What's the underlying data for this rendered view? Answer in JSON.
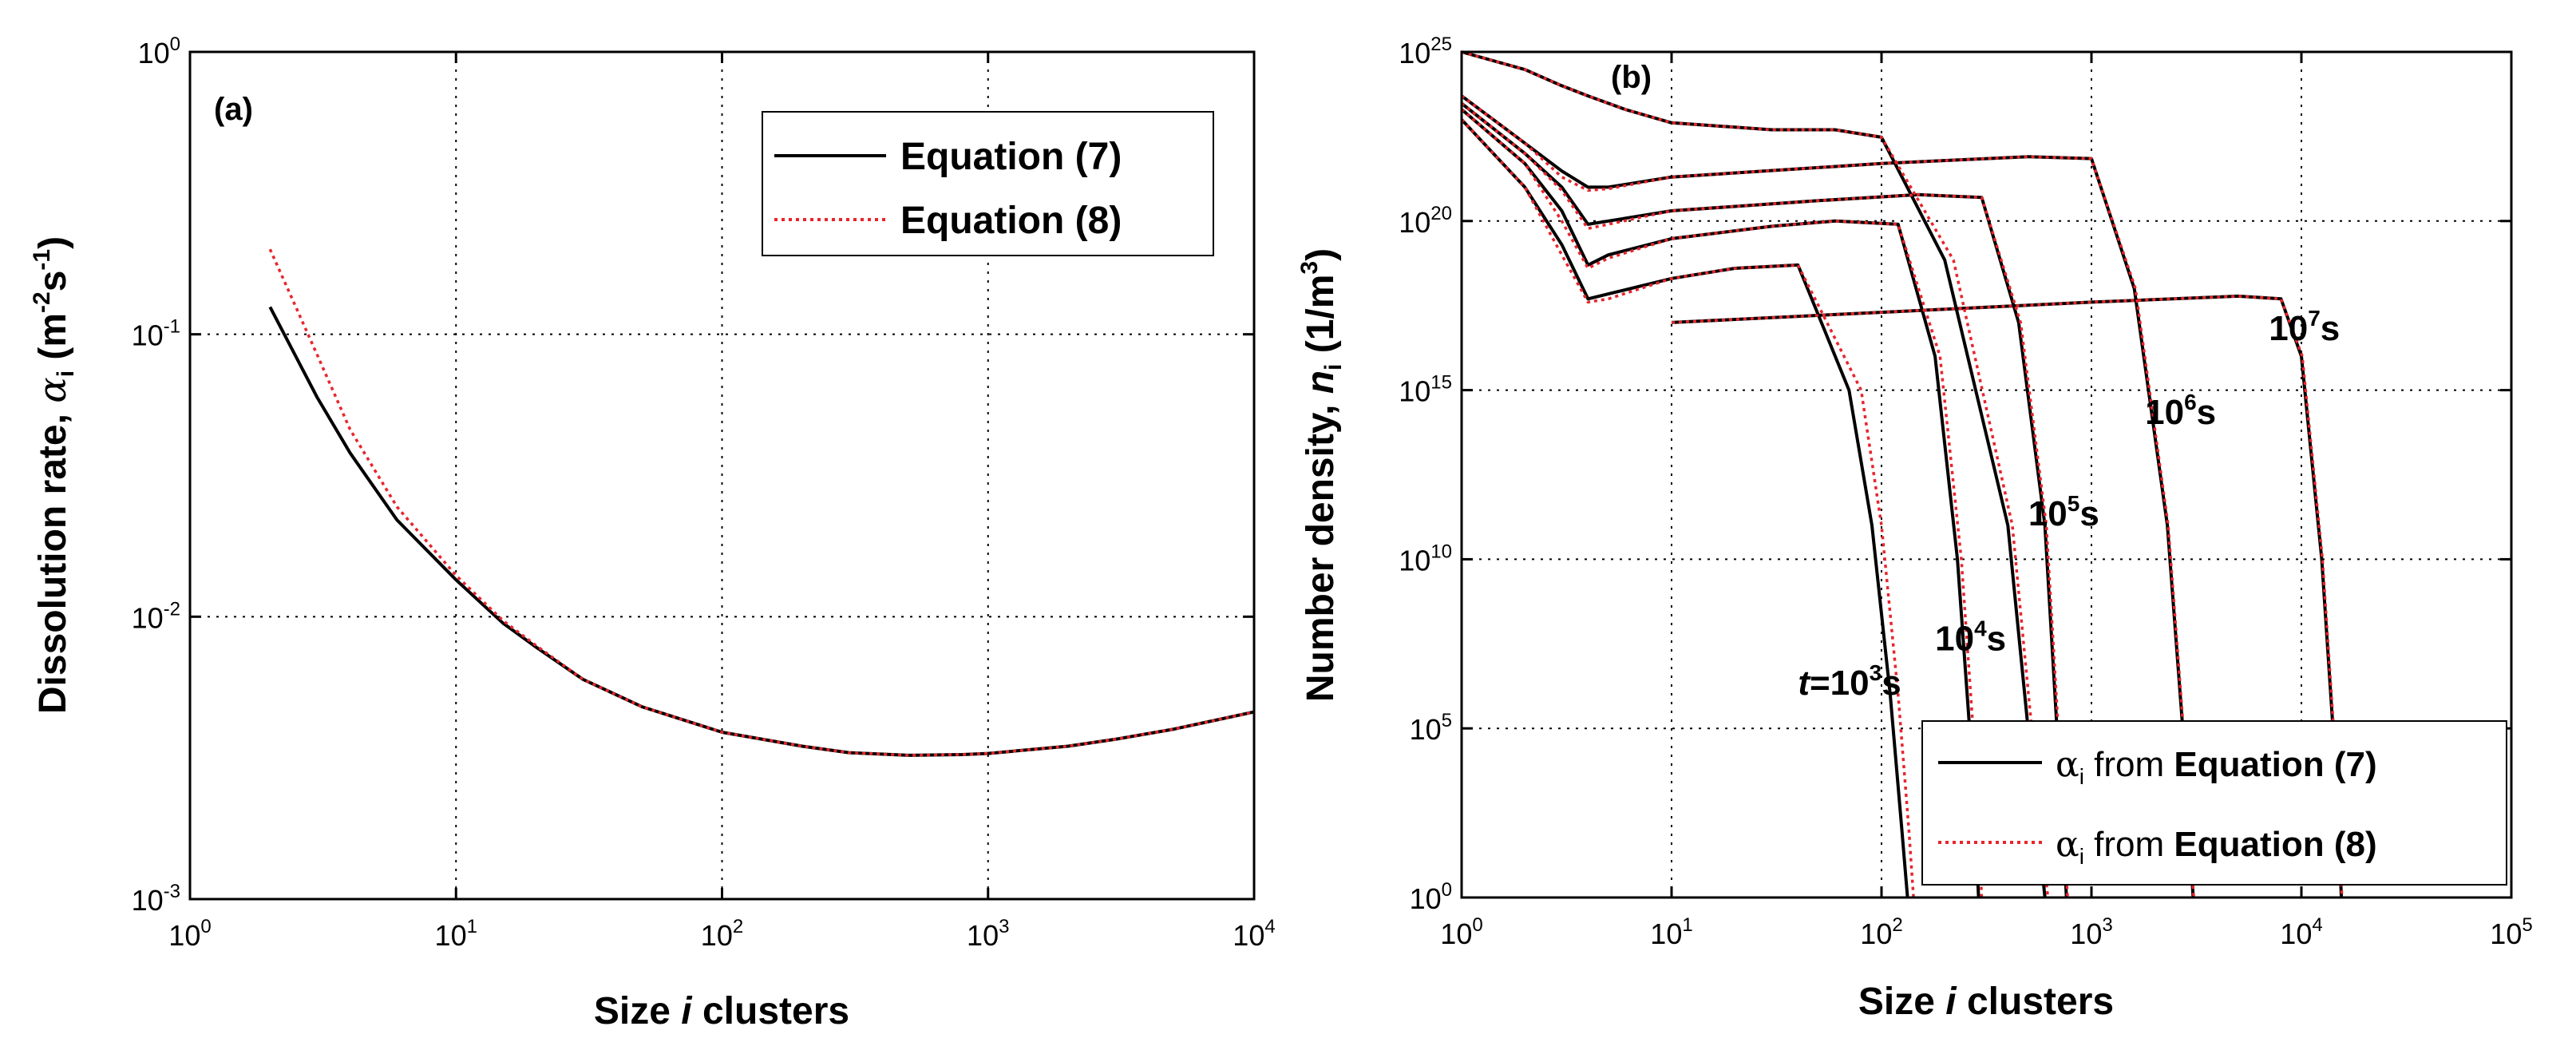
{
  "chart_data": [
    {
      "type": "line",
      "panel_label": "(a)",
      "title": "",
      "xlabel": {
        "pre": "Size ",
        "ital": "i",
        "post": " clusters"
      },
      "ylabel": {
        "pre": "Dissolution rate, ",
        "sym": "α",
        "sub": "i",
        "unit_pre": " (m",
        "sup1": "-2",
        "mid": "s",
        "sup2": "-1",
        "unit_post": ")"
      },
      "xscale": "log",
      "yscale": "log",
      "xlim": [
        1,
        10000
      ],
      "ylim": [
        0.001,
        1
      ],
      "xticks": [
        {
          "base": "10",
          "exp": "0"
        },
        {
          "base": "10",
          "exp": "1"
        },
        {
          "base": "10",
          "exp": "2"
        },
        {
          "base": "10",
          "exp": "3"
        },
        {
          "base": "10",
          "exp": "4"
        }
      ],
      "yticks": [
        {
          "base": "10",
          "exp": "-3"
        },
        {
          "base": "10",
          "exp": "-2"
        },
        {
          "base": "10",
          "exp": "-1"
        },
        {
          "base": "10",
          "exp": "0"
        }
      ],
      "grid": true,
      "legend_position": "top-right",
      "series": [
        {
          "name": "Equation (7)",
          "color": "#000000",
          "style": "solid",
          "x": [
            2,
            3,
            4,
            6,
            10,
            15,
            20,
            30,
            50,
            100,
            200,
            300,
            500,
            800,
            1000,
            2000,
            3000,
            5000,
            10000
          ],
          "y": [
            0.125,
            0.06,
            0.038,
            0.022,
            0.0135,
            0.0095,
            0.0078,
            0.006,
            0.0048,
            0.0039,
            0.00348,
            0.0033,
            0.00323,
            0.00325,
            0.00328,
            0.00348,
            0.00368,
            0.004,
            0.0046
          ]
        },
        {
          "name": "Equation (8)",
          "color": "#e8242c",
          "style": "dotted",
          "x": [
            2,
            2.5,
            3,
            4,
            6,
            10,
            15,
            20,
            30,
            50,
            100,
            200,
            300,
            500,
            800,
            1000,
            2000,
            3000,
            5000,
            10000
          ],
          "y": [
            0.2,
            0.125,
            0.085,
            0.046,
            0.0245,
            0.014,
            0.0097,
            0.0079,
            0.006,
            0.0048,
            0.0039,
            0.00348,
            0.0033,
            0.00323,
            0.00325,
            0.00328,
            0.00348,
            0.00368,
            0.004,
            0.0046
          ]
        }
      ],
      "annotations": []
    },
    {
      "type": "line",
      "panel_label": "(b)",
      "title": "",
      "xlabel": {
        "pre": "Size ",
        "ital": "i",
        "post": " clusters"
      },
      "ylabel": {
        "pre": "Number density, ",
        "sym": "n",
        "sub": "i",
        "unit": " (1/m",
        "sup": "3",
        "unit_post": ")"
      },
      "xscale": "log",
      "yscale": "log",
      "xlim": [
        1,
        100000
      ],
      "ylim": [
        1,
        1e+25
      ],
      "xticks": [
        {
          "base": "10",
          "exp": "0"
        },
        {
          "base": "10",
          "exp": "1"
        },
        {
          "base": "10",
          "exp": "2"
        },
        {
          "base": "10",
          "exp": "3"
        },
        {
          "base": "10",
          "exp": "4"
        },
        {
          "base": "10",
          "exp": "5"
        }
      ],
      "yticks": [
        {
          "base": "10",
          "exp": "0"
        },
        {
          "base": "10",
          "exp": "5"
        },
        {
          "base": "10",
          "exp": "10"
        },
        {
          "base": "10",
          "exp": "15"
        },
        {
          "base": "10",
          "exp": "20"
        },
        {
          "base": "10",
          "exp": "25"
        }
      ],
      "grid": true,
      "legend_position": "bottom-right",
      "legend": [
        {
          "sym": "α",
          "sub": "i",
          "pre": " from ",
          "bold": "Equation (7)",
          "color": "#000000",
          "style": "solid"
        },
        {
          "sym": "α",
          "sub": "i",
          "pre": " from ",
          "bold": "Equation (8)",
          "color": "#e8242c",
          "style": "dotted"
        }
      ],
      "series": [
        {
          "name": "t=10^3 s (Eq. 7)",
          "color": "#000000",
          "style": "solid",
          "x": [
            1,
            2,
            3,
            4,
            5,
            10,
            20,
            40,
            70,
            90,
            110,
            125,
            133
          ],
          "y": [
            1e+23,
            1e+21,
            2e+19,
            5e+17,
            7e+17,
            2e+18,
            4e+18,
            5e+18,
            1000000000000000.0,
            100000000000.0,
            1000000.0,
            100.0,
            1
          ]
        },
        {
          "name": "t=10^4 s (Eq. 7)",
          "color": "#000000",
          "style": "solid",
          "x": [
            1,
            2,
            3,
            4,
            5,
            10,
            30,
            60,
            120,
            180,
            230,
            270,
            290
          ],
          "y": [
            2e+23,
            5e+21,
            2e+20,
            5e+18,
            1e+19,
            3e+19,
            7e+19,
            1e+20,
            8e+19,
            1e+16,
            10000000000.0,
            10000.0,
            1
          ]
        },
        {
          "name": "t=10^5 s (Eq. 7)",
          "color": "#000000",
          "style": "solid",
          "x": [
            1,
            2,
            3,
            4,
            5,
            10,
            50,
            150,
            300,
            450,
            600,
            700,
            760
          ],
          "y": [
            3e+23,
            1e+22,
            1e+21,
            8e+19,
            1e+20,
            2e+20,
            4e+20,
            6e+20,
            5e+20,
            1e+17,
            100000000000.0,
            10000.0,
            1
          ]
        },
        {
          "name": "t=10^6 s (Eq. 7)",
          "color": "#000000",
          "style": "solid",
          "x": [
            1,
            2,
            3,
            4,
            5,
            10,
            100,
            500,
            1000,
            1600,
            2300,
            2800,
            3050
          ],
          "y": [
            5e+23,
            2e+22,
            3e+21,
            1e+21,
            1e+21,
            2e+21,
            5e+21,
            8e+21,
            7e+21,
            1e+18,
            100000000000.0,
            10000.0,
            1
          ]
        },
        {
          "name": "t=10^7 s (Eq. 7)",
          "color": "#000000",
          "style": "solid",
          "x": [
            1,
            2,
            3,
            4,
            6,
            10,
            30,
            60,
            100,
            200,
            400,
            600
          ],
          "y": [
            1e+25,
            3e+24,
            1e+24,
            5e+23,
            2e+23,
            8e+22,
            5e+22,
            5e+22,
            3e+22,
            7e+18,
            100000000000.0,
            1
          ]
        },
        {
          "name": "t=10^7 s tail (Eq. 7)",
          "color": "#000000",
          "style": "solid",
          "x": [
            10,
            100,
            1000,
            5000,
            8000,
            10000,
            12500,
            14500,
            15500
          ],
          "y": [
            1e+17,
            2e+17,
            4e+17,
            6e+17,
            5e+17,
            1e+16,
            10000000000.0,
            10000.0,
            1
          ]
        },
        {
          "name": "t=10^3 s (Eq. 8)",
          "color": "#e8242c",
          "style": "dotted",
          "x": [
            1,
            2,
            3,
            4,
            5,
            10,
            20,
            40,
            80,
            100,
            120,
            135,
            142
          ],
          "y": [
            1e+23,
            1e+21,
            1e+19,
            4e+17,
            5e+17,
            2e+18,
            4e+18,
            5e+18,
            1000000000000000.0,
            100000000000.0,
            1000000.0,
            100.0,
            1
          ]
        },
        {
          "name": "t=10^4 s (Eq. 8)",
          "color": "#e8242c",
          "style": "dotted",
          "x": [
            1,
            2,
            3,
            4,
            5,
            10,
            30,
            60,
            120,
            190,
            240,
            280,
            300
          ],
          "y": [
            2e+23,
            5e+21,
            1e+20,
            4e+18,
            8e+18,
            3e+19,
            7e+19,
            1e+20,
            8e+19,
            1e+16,
            10000000000.0,
            10000.0,
            1
          ]
        },
        {
          "name": "t=10^5 s (Eq. 8)",
          "color": "#e8242c",
          "style": "dotted",
          "x": [
            1,
            2,
            3,
            4,
            5,
            10,
            50,
            150,
            300,
            460,
            610,
            710,
            770
          ],
          "y": [
            3e+23,
            1e+22,
            8e+20,
            6e+19,
            8e+19,
            2e+20,
            4e+20,
            6e+20,
            5e+20,
            1e+17,
            100000000000.0,
            10000.0,
            1
          ]
        },
        {
          "name": "t=10^6 s (Eq. 8)",
          "color": "#e8242c",
          "style": "dotted",
          "x": [
            1,
            2,
            3,
            4,
            5,
            10,
            100,
            500,
            1000,
            1620,
            2320,
            2820,
            3070
          ],
          "y": [
            5e+23,
            2e+22,
            2e+21,
            8e+20,
            9e+20,
            2e+21,
            5e+21,
            8e+21,
            7e+21,
            1e+18,
            100000000000.0,
            10000.0,
            1
          ]
        },
        {
          "name": "t=10^7 s (Eq. 8)",
          "color": "#e8242c",
          "style": "dotted",
          "x": [
            1,
            2,
            3,
            4,
            6,
            10,
            30,
            60,
            100,
            220,
            420,
            620
          ],
          "y": [
            1e+25,
            3e+24,
            1e+24,
            5e+23,
            2e+23,
            8e+22,
            5e+22,
            5e+22,
            3e+22,
            7e+18,
            100000000000.0,
            1
          ]
        },
        {
          "name": "t=10^7 s tail (Eq. 8)",
          "color": "#e8242c",
          "style": "dotted",
          "x": [
            10,
            100,
            1000,
            5000,
            8000,
            10100,
            12600,
            14600,
            15600
          ],
          "y": [
            1e+17,
            2e+17,
            4e+17,
            6e+17,
            5e+17,
            1e+16,
            10000000000.0,
            10000.0,
            1
          ]
        }
      ],
      "annotations": [
        {
          "pre": "",
          "ital": "t",
          "eq": "=10",
          "sup": "3",
          "post": "s",
          "x": 40,
          "y": 1000000.0
        },
        {
          "pre": "10",
          "ital": "",
          "eq": "",
          "sup": "4",
          "post": "s",
          "x": 180,
          "y": 20000000.0
        },
        {
          "pre": "10",
          "ital": "",
          "eq": "",
          "sup": "5",
          "post": "s",
          "x": 500,
          "y": 100000000000.0
        },
        {
          "pre": "10",
          "ital": "",
          "eq": "",
          "sup": "6",
          "post": "s",
          "x": 1800,
          "y": 100000000000000.0
        },
        {
          "pre": "10",
          "ital": "",
          "eq": "",
          "sup": "7",
          "post": "s",
          "x": 7000,
          "y": 3e+16
        }
      ]
    }
  ]
}
